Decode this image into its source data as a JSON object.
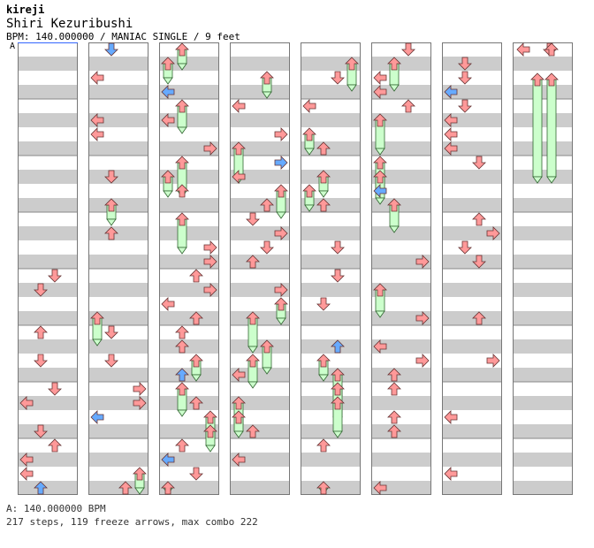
{
  "header": {
    "title": "kireji",
    "song": "Shiri Kezuribushi",
    "info": "BPM: 140.000000 / MANIAC SINGLE / 9 feet"
  },
  "marker_label": "A",
  "footer": {
    "bpm_line": "A: 140.000000 BPM",
    "stats_line": "217 steps, 119 freeze arrows, max combo 222"
  },
  "colors": {
    "red": "#ff9999",
    "blue": "#66aaff",
    "freeze": "#ccffcc"
  }
}
